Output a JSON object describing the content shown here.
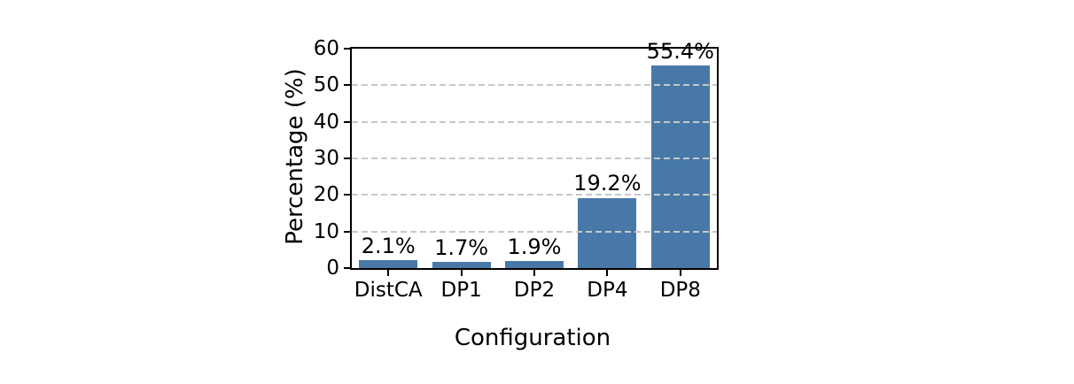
{
  "chart_data": {
    "type": "bar",
    "title": "",
    "xlabel": "Configuration",
    "ylabel": "Percentage (%)",
    "categories": [
      "DistCA",
      "DP1",
      "DP2",
      "DP4",
      "DP8"
    ],
    "values": [
      2.1,
      1.7,
      1.9,
      19.2,
      55.4
    ],
    "bar_labels": [
      "2.1%",
      "1.7%",
      "1.9%",
      "19.2%",
      "55.4%"
    ],
    "ylim": [
      0,
      60
    ],
    "yticks": [
      0,
      10,
      20,
      30,
      40,
      50,
      60
    ],
    "grid": {
      "axis": "y",
      "style": "dashed",
      "color": "#c8c8c8",
      "on": true
    },
    "legend": "none",
    "colors": {
      "bar": "#4878a8",
      "grid": "#c8c8c8",
      "spine": "#000000",
      "text": "#000000",
      "background": "#ffffff"
    }
  }
}
